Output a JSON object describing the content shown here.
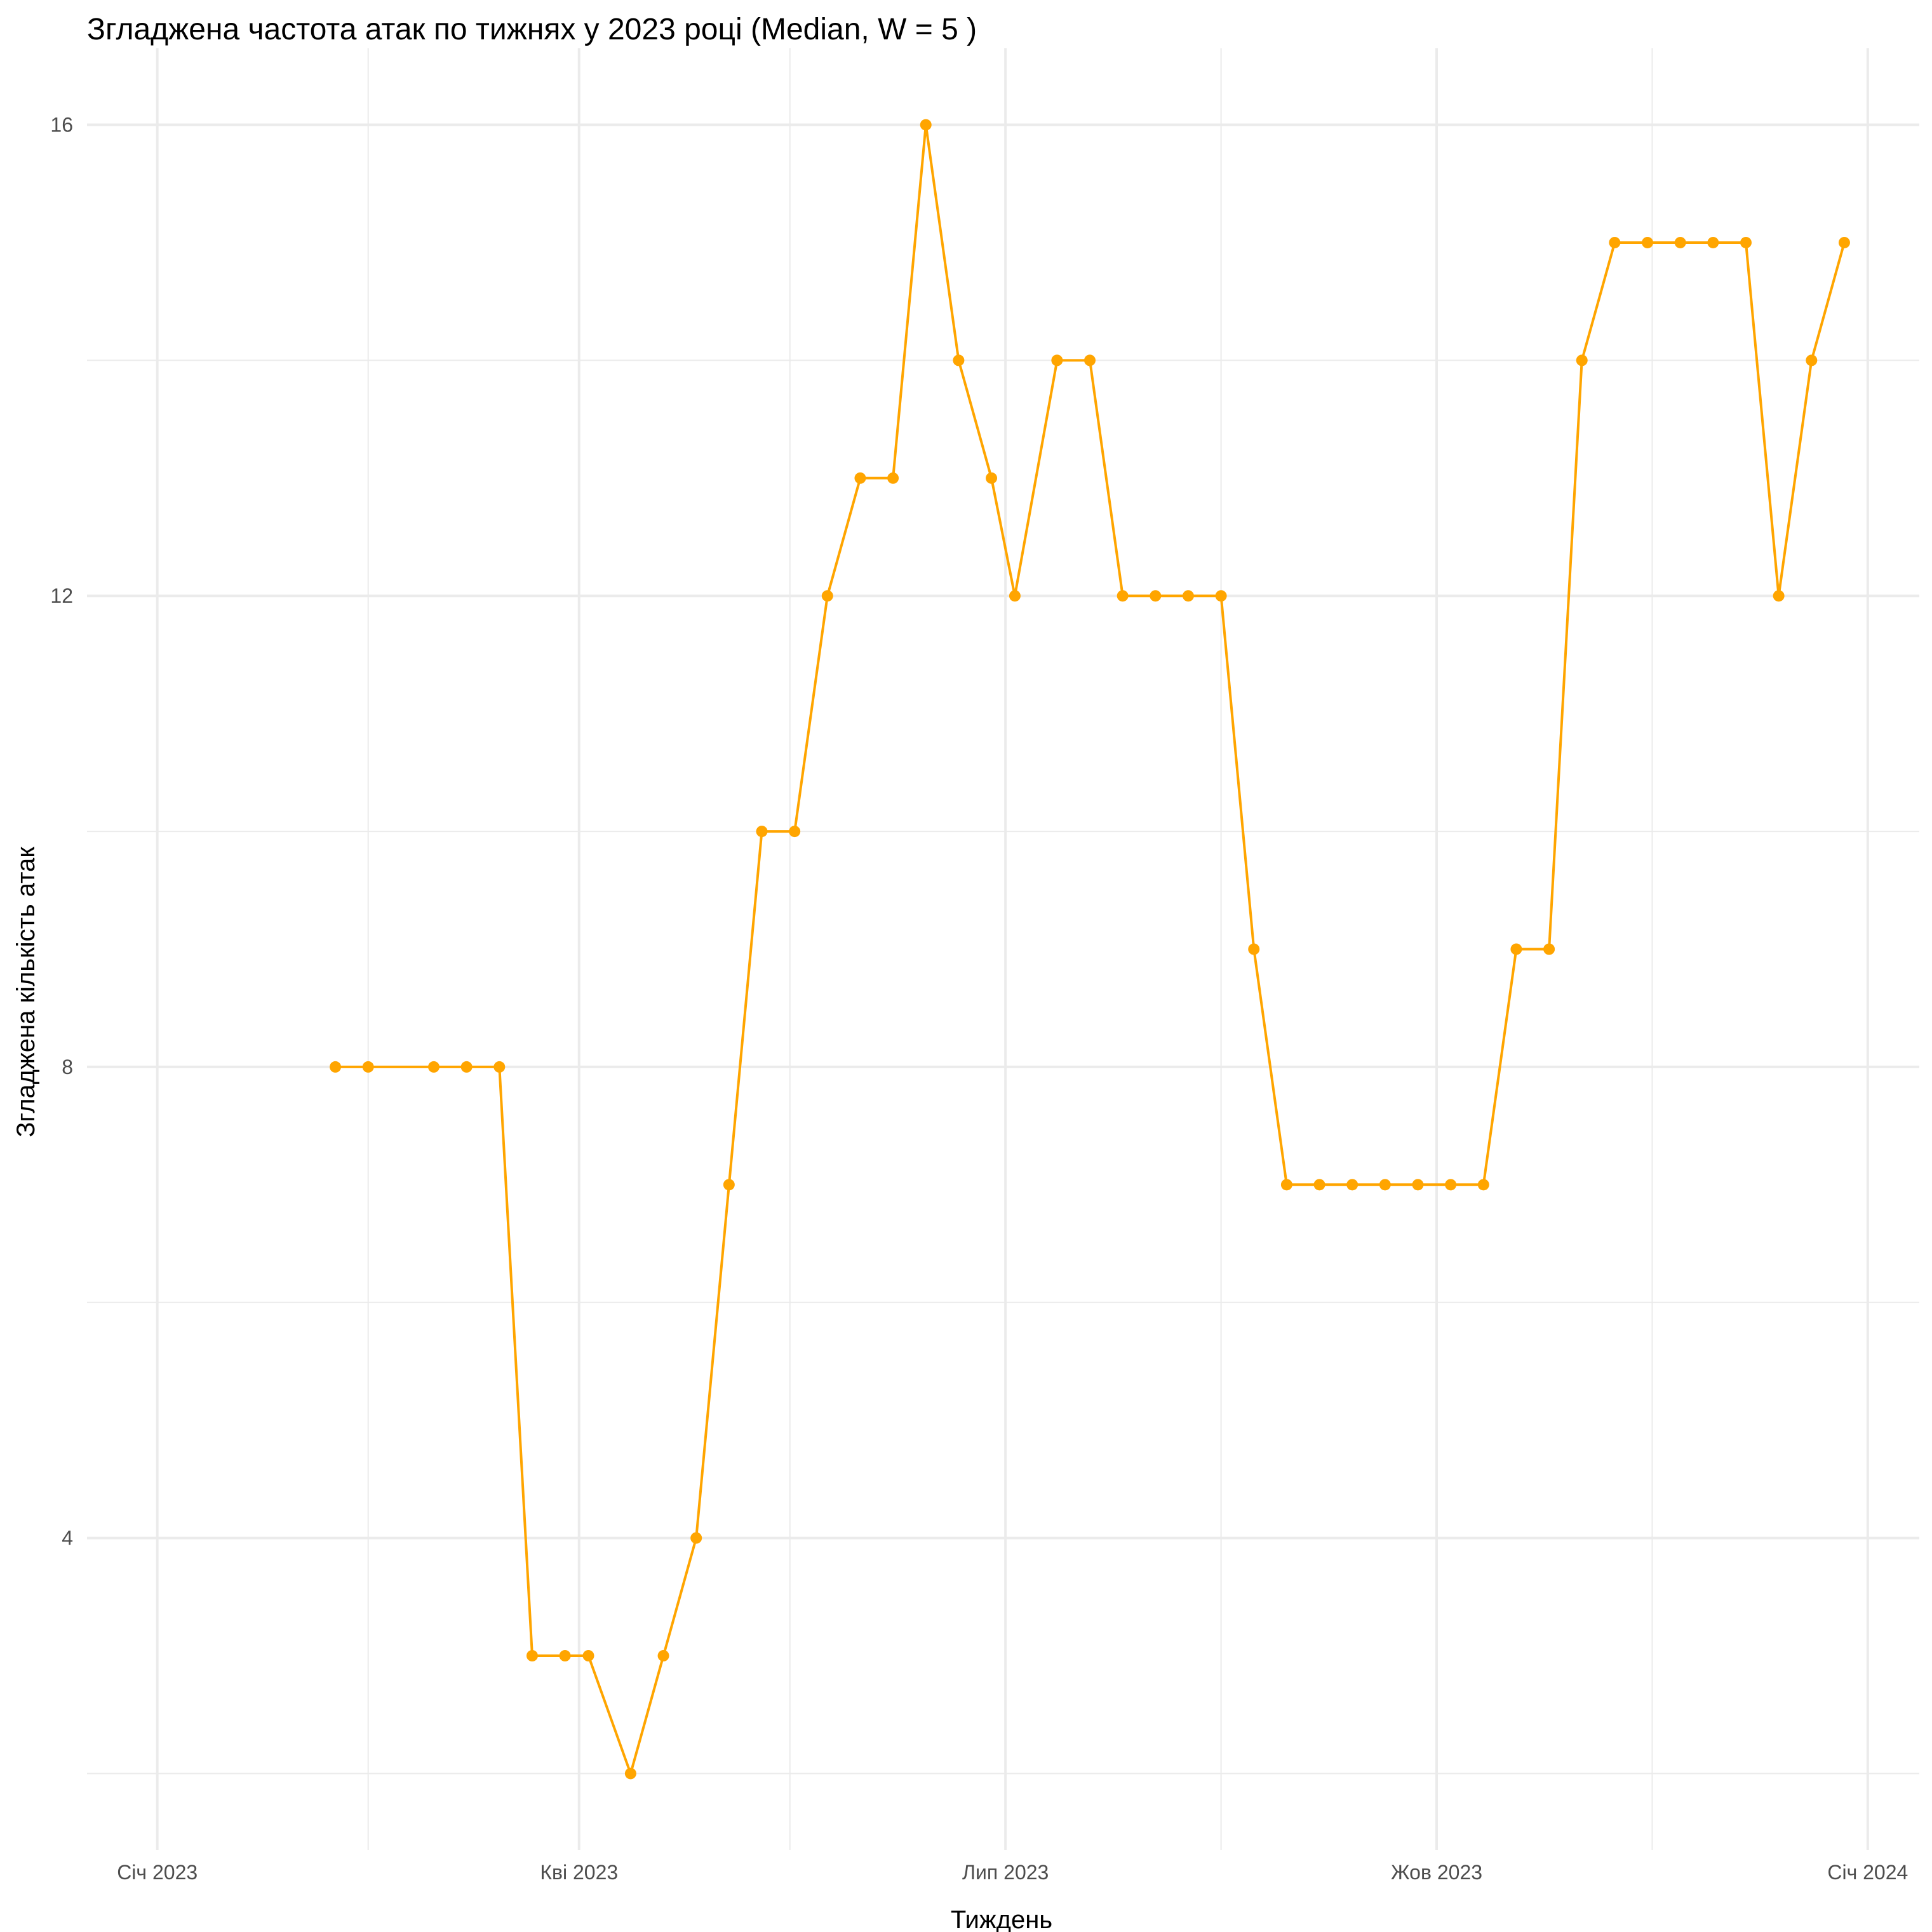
{
  "chart_data": {
    "type": "line",
    "title": "Згладжена частота атак по тижнях у 2023 році (Median, W = 5 )",
    "xlabel": "Тиждень",
    "ylabel": "Згладжена кількість атак",
    "x_ticks": [
      {
        "date": "2023-01-01",
        "label": "Січ 2023"
      },
      {
        "date": "2023-04-01",
        "label": "Кві 2023"
      },
      {
        "date": "2023-07-01",
        "label": "Лип 2023"
      },
      {
        "date": "2023-10-01",
        "label": "Жов 2023"
      },
      {
        "date": "2024-01-01",
        "label": "Січ 2024"
      }
    ],
    "x_minor_ticks": [
      "2023-02-15",
      "2023-05-16",
      "2023-08-16",
      "2023-11-16"
    ],
    "xlim": [
      "2022-12-17",
      "2024-01-12"
    ],
    "y_ticks": [
      4,
      8,
      12,
      16
    ],
    "y_minor_ticks": [
      2,
      6,
      10,
      14
    ],
    "ylim": [
      1.35,
      16.65
    ],
    "grid": true,
    "color": "#FFA500",
    "series": [
      {
        "name": "Median, W = 5",
        "x": [
          "2023-02-08",
          "2023-02-15",
          "2023-03-01",
          "2023-03-08",
          "2023-03-15",
          "2023-03-22",
          "2023-03-29",
          "2023-04-03",
          "2023-04-12",
          "2023-04-19",
          "2023-04-26",
          "2023-05-03",
          "2023-05-10",
          "2023-05-17",
          "2023-05-24",
          "2023-05-31",
          "2023-06-07",
          "2023-06-14",
          "2023-06-21",
          "2023-06-28",
          "2023-07-03",
          "2023-07-12",
          "2023-07-19",
          "2023-07-26",
          "2023-08-02",
          "2023-08-09",
          "2023-08-16",
          "2023-08-23",
          "2023-08-30",
          "2023-09-06",
          "2023-09-13",
          "2023-09-20",
          "2023-09-27",
          "2023-10-04",
          "2023-10-11",
          "2023-10-18",
          "2023-10-25",
          "2023-11-01",
          "2023-11-08",
          "2023-11-15",
          "2023-11-22",
          "2023-11-29",
          "2023-12-06",
          "2023-12-13",
          "2023-12-20",
          "2023-12-27"
        ],
        "y": [
          8,
          8,
          8,
          8,
          8,
          3,
          3,
          3,
          2,
          3,
          4,
          7,
          10,
          10,
          12,
          13,
          13,
          16,
          14,
          13,
          12,
          14,
          14,
          12,
          12,
          12,
          12,
          9,
          7,
          7,
          7,
          7,
          7,
          7,
          7,
          9,
          9,
          14,
          15,
          15,
          15,
          15,
          15,
          12,
          14,
          15
        ]
      }
    ]
  }
}
